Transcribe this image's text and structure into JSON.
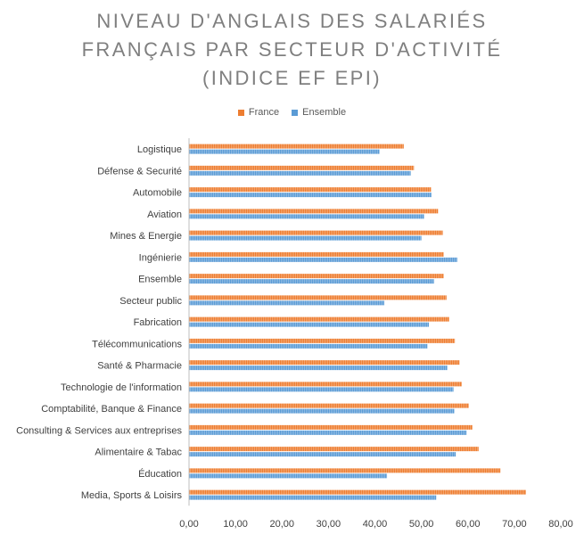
{
  "chart_data": {
    "type": "bar",
    "orientation": "horizontal",
    "title_lines": [
      "NIVEAU D'ANGLAIS DES SALARIÉS",
      "FRANÇAIS PAR SECTEUR D'ACTIVITÉ",
      "(INDICE EF EPI)"
    ],
    "categories": [
      "Logistique",
      "Défense & Securité",
      "Automobile",
      "Aviation",
      "Mines & Energie",
      "Ingénierie",
      "Ensemble",
      "Secteur public",
      "Fabrication",
      "Télécommunications",
      "Santé & Pharmacie",
      "Technologie de l'information",
      "Comptabilité, Banque & Finance",
      "Consulting & Services aux entreprises",
      "Alimentaire & Tabac",
      "Éducation",
      "Media, Sports & Loisirs"
    ],
    "series": [
      {
        "name": "France",
        "color": "#ED7D31",
        "values": [
          46.2,
          48.4,
          52.1,
          53.6,
          54.6,
          54.8,
          54.8,
          55.4,
          56.0,
          57.2,
          58.2,
          58.7,
          60.2,
          61.0,
          62.3,
          67.0,
          72.5
        ]
      },
      {
        "name": "Ensemble",
        "color": "#5B9BD5",
        "values": [
          41.0,
          47.7,
          52.2,
          50.6,
          50.0,
          57.7,
          52.7,
          42.0,
          51.6,
          51.3,
          55.6,
          56.9,
          57.1,
          59.7,
          57.4,
          42.6,
          53.2
        ]
      }
    ],
    "xlim": [
      0,
      80
    ],
    "xticks": [
      "0,00",
      "10,00",
      "20,00",
      "30,00",
      "40,00",
      "50,00",
      "60,00",
      "70,00",
      "80,00"
    ],
    "grid": false,
    "legend_position": "top"
  }
}
